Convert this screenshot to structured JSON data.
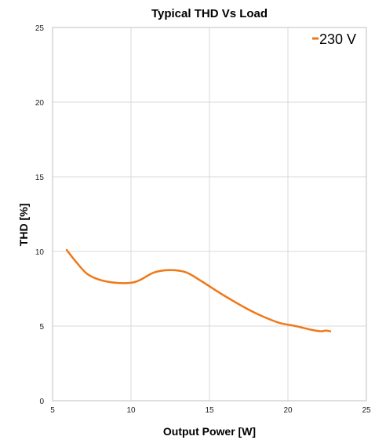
{
  "chart_data": {
    "type": "line",
    "title": "Typical THD Vs Load",
    "xlabel": "Output Power [W]",
    "ylabel": "THD [%]",
    "xlim": [
      5,
      25
    ],
    "ylim": [
      0,
      25
    ],
    "x_ticks": [
      5,
      10,
      15,
      20,
      25
    ],
    "y_ticks": [
      0,
      5,
      10,
      15,
      20,
      25
    ],
    "grid": true,
    "legend_position": "top-right",
    "colors": {
      "series": "#f07818",
      "grid": "#d9d9d9",
      "border": "#bfbfbf"
    },
    "series": [
      {
        "name": "230 V",
        "x": [
          5.9,
          6.5,
          7.2,
          8.0,
          9.0,
          10.0,
          10.6,
          11.5,
          12.5,
          13.5,
          14.5,
          16.0,
          17.5,
          18.5,
          19.5,
          20.5,
          21.5,
          22.1,
          22.4,
          22.7
        ],
        "y": [
          10.1,
          9.3,
          8.5,
          8.1,
          7.9,
          7.9,
          8.1,
          8.6,
          8.75,
          8.6,
          8.0,
          7.0,
          6.1,
          5.6,
          5.2,
          5.0,
          4.75,
          4.65,
          4.7,
          4.65
        ]
      }
    ]
  }
}
